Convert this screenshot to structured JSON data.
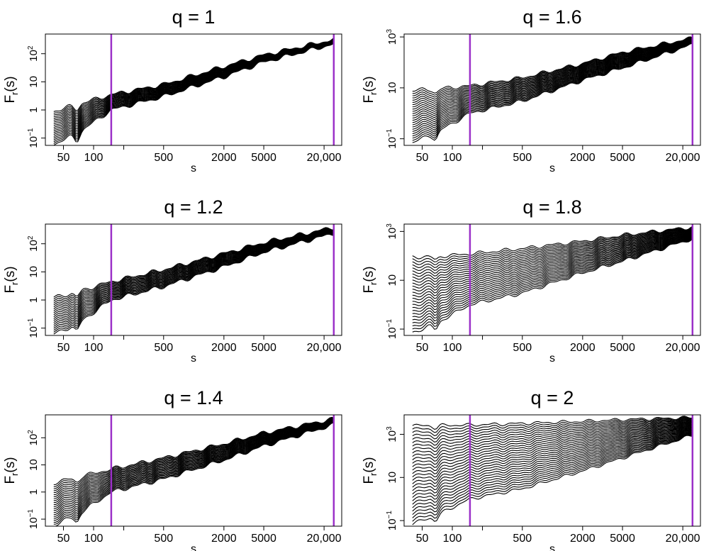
{
  "chart_data": {
    "type": "line",
    "x_scale": "log",
    "y_scale": "log",
    "vline_color": "#9b30c8",
    "line_color": "#000000",
    "panels": [
      {
        "title": "q = 1",
        "xlabel": "s",
        "ylabel": "F",
        "ylabel_sub": "r",
        "ylabel_suffix": "(s)",
        "xlim": [
          33,
          30000
        ],
        "ylim": [
          0.055,
          500
        ],
        "xticks": [
          {
            "value": 50,
            "label": "50"
          },
          {
            "value": 100,
            "label": "100"
          },
          {
            "value": 200,
            "label": ""
          },
          {
            "value": 500,
            "label": "500"
          },
          {
            "value": 2000,
            "label": "2000"
          },
          {
            "value": 5000,
            "label": "5000"
          },
          {
            "value": 20000,
            "label": "20,000"
          }
        ],
        "yticks": [
          {
            "value": 0.1,
            "base": "10",
            "exp": "−1"
          },
          {
            "value": 1,
            "base": "1",
            "exp": ""
          },
          {
            "value": 10,
            "base": "10",
            "exp": ""
          },
          {
            "value": 100,
            "base": "10",
            "exp": "2"
          }
        ],
        "vlines": [
          150,
          25000
        ],
        "n_lines": 20,
        "x_start": 40,
        "x_end": 25000,
        "top_line": {
          "x": [
            40,
            70,
            150,
            500,
            2000,
            5000,
            25000
          ],
          "y": [
            0.9,
            1.6,
            3.5,
            8,
            35,
            90,
            320
          ]
        },
        "bottom_line": {
          "x": [
            40,
            70,
            150,
            500,
            2000,
            5000,
            25000
          ],
          "y": [
            0.06,
            0.15,
            1,
            3,
            15,
            50,
            220
          ]
        }
      },
      {
        "title": "q = 1.6",
        "xlabel": "s",
        "ylabel": "F",
        "ylabel_sub": "r",
        "ylabel_suffix": "(s)",
        "xlim": [
          33,
          30000
        ],
        "ylim": [
          0.055,
          1300
        ],
        "xticks": [
          {
            "value": 50,
            "label": "50"
          },
          {
            "value": 100,
            "label": "100"
          },
          {
            "value": 200,
            "label": ""
          },
          {
            "value": 500,
            "label": "500"
          },
          {
            "value": 2000,
            "label": "2000"
          },
          {
            "value": 5000,
            "label": "5000"
          },
          {
            "value": 20000,
            "label": "20,000"
          }
        ],
        "yticks": [
          {
            "value": 0.1,
            "base": "10",
            "exp": "−1"
          },
          {
            "value": 10,
            "base": "10",
            "exp": ""
          },
          {
            "value": 1000,
            "base": "10",
            "exp": "3"
          }
        ],
        "vlines": [
          150,
          25000
        ],
        "n_lines": 24,
        "x_start": 40,
        "x_end": 25000,
        "top_line": {
          "x": [
            40,
            70,
            150,
            500,
            2000,
            5000,
            25000
          ],
          "y": [
            8,
            9,
            12,
            25,
            90,
            250,
            900
          ]
        },
        "bottom_line": {
          "x": [
            40,
            70,
            150,
            500,
            2000,
            5000,
            25000
          ],
          "y": [
            0.07,
            0.18,
            1,
            3,
            20,
            60,
            500
          ]
        }
      },
      {
        "title": "q = 1.2",
        "xlabel": "s",
        "ylabel": "F",
        "ylabel_sub": "r",
        "ylabel_suffix": "(s)",
        "xlim": [
          33,
          30000
        ],
        "ylim": [
          0.055,
          500
        ],
        "xticks": [
          {
            "value": 50,
            "label": "50"
          },
          {
            "value": 100,
            "label": "100"
          },
          {
            "value": 200,
            "label": ""
          },
          {
            "value": 500,
            "label": "500"
          },
          {
            "value": 2000,
            "label": "2000"
          },
          {
            "value": 5000,
            "label": "5000"
          },
          {
            "value": 20000,
            "label": "20,000"
          }
        ],
        "yticks": [
          {
            "value": 0.1,
            "base": "10",
            "exp": "−1"
          },
          {
            "value": 1,
            "base": "1",
            "exp": ""
          },
          {
            "value": 10,
            "base": "10",
            "exp": ""
          },
          {
            "value": 100,
            "base": "10",
            "exp": "2"
          }
        ],
        "vlines": [
          150,
          25000
        ],
        "n_lines": 20,
        "x_start": 40,
        "x_end": 25000,
        "top_line": {
          "x": [
            40,
            70,
            150,
            500,
            2000,
            5000,
            25000
          ],
          "y": [
            1.2,
            2,
            4.5,
            12,
            45,
            110,
            380
          ]
        },
        "bottom_line": {
          "x": [
            40,
            70,
            150,
            500,
            2000,
            5000,
            25000
          ],
          "y": [
            0.06,
            0.15,
            1,
            3,
            15,
            50,
            230
          ]
        }
      },
      {
        "title": "q = 1.8",
        "xlabel": "s",
        "ylabel": "F",
        "ylabel_sub": "r",
        "ylabel_suffix": "(s)",
        "xlim": [
          33,
          30000
        ],
        "ylim": [
          0.055,
          2000
        ],
        "xticks": [
          {
            "value": 50,
            "label": "50"
          },
          {
            "value": 100,
            "label": "100"
          },
          {
            "value": 200,
            "label": ""
          },
          {
            "value": 500,
            "label": "500"
          },
          {
            "value": 2000,
            "label": "2000"
          },
          {
            "value": 5000,
            "label": "5000"
          },
          {
            "value": 20000,
            "label": "20,000"
          }
        ],
        "yticks": [
          {
            "value": 0.1,
            "base": "10",
            "exp": "−1"
          },
          {
            "value": 10,
            "base": "10",
            "exp": ""
          },
          {
            "value": 1000,
            "base": "10",
            "exp": "3"
          }
        ],
        "vlines": [
          150,
          25000
        ],
        "n_lines": 26,
        "x_start": 40,
        "x_end": 25000,
        "top_line": {
          "x": [
            40,
            70,
            150,
            500,
            2000,
            5000,
            25000
          ],
          "y": [
            90,
            95,
            120,
            200,
            400,
            700,
            1500
          ]
        },
        "bottom_line": {
          "x": [
            40,
            70,
            150,
            500,
            2000,
            5000,
            25000
          ],
          "y": [
            0.07,
            0.18,
            1,
            3,
            20,
            60,
            500
          ]
        }
      },
      {
        "title": "q = 1.4",
        "xlabel": "s",
        "ylabel": "F",
        "ylabel_sub": "r",
        "ylabel_suffix": "(s)",
        "xlim": [
          33,
          30000
        ],
        "ylim": [
          0.055,
          700
        ],
        "xticks": [
          {
            "value": 50,
            "label": "50"
          },
          {
            "value": 100,
            "label": "100"
          },
          {
            "value": 200,
            "label": ""
          },
          {
            "value": 500,
            "label": "500"
          },
          {
            "value": 2000,
            "label": "2000"
          },
          {
            "value": 5000,
            "label": "5000"
          },
          {
            "value": 20000,
            "label": "20,000"
          }
        ],
        "yticks": [
          {
            "value": 0.1,
            "base": "10",
            "exp": "−1"
          },
          {
            "value": 1,
            "base": "1",
            "exp": ""
          },
          {
            "value": 10,
            "base": "10",
            "exp": ""
          },
          {
            "value": 100,
            "base": "10",
            "exp": "2"
          }
        ],
        "vlines": [
          150,
          25000
        ],
        "n_lines": 22,
        "x_start": 40,
        "x_end": 25000,
        "top_line": {
          "x": [
            40,
            70,
            150,
            500,
            2000,
            5000,
            25000
          ],
          "y": [
            2.2,
            3.5,
            7,
            18,
            60,
            150,
            500
          ]
        },
        "bottom_line": {
          "x": [
            40,
            70,
            150,
            500,
            2000,
            5000,
            25000
          ],
          "y": [
            0.06,
            0.15,
            1,
            3,
            15,
            50,
            300
          ]
        }
      },
      {
        "title": "q = 2",
        "xlabel": "s",
        "ylabel": "F",
        "ylabel_sub": "r",
        "ylabel_suffix": "(s)",
        "xlim": [
          33,
          30000
        ],
        "ylim": [
          0.055,
          8000
        ],
        "xticks": [
          {
            "value": 50,
            "label": "50"
          },
          {
            "value": 100,
            "label": "100"
          },
          {
            "value": 200,
            "label": ""
          },
          {
            "value": 500,
            "label": "500"
          },
          {
            "value": 2000,
            "label": "2000"
          },
          {
            "value": 5000,
            "label": "5000"
          },
          {
            "value": 20000,
            "label": "20,000"
          }
        ],
        "yticks": [
          {
            "value": 0.1,
            "base": "10",
            "exp": "−1"
          },
          {
            "value": 10,
            "base": "10",
            "exp": ""
          },
          {
            "value": 1000,
            "base": "10",
            "exp": "3"
          }
        ],
        "vlines": [
          150,
          25000
        ],
        "n_lines": 30,
        "x_start": 40,
        "x_end": 25000,
        "top_line": {
          "x": [
            40,
            70,
            150,
            500,
            2000,
            5000,
            25000
          ],
          "y": [
            2500,
            2600,
            2700,
            3200,
            4000,
            4800,
            6000
          ]
        },
        "bottom_line": {
          "x": [
            40,
            70,
            150,
            500,
            2000,
            5000,
            25000
          ],
          "y": [
            0.07,
            0.18,
            1,
            3,
            20,
            80,
            900
          ]
        }
      }
    ]
  }
}
